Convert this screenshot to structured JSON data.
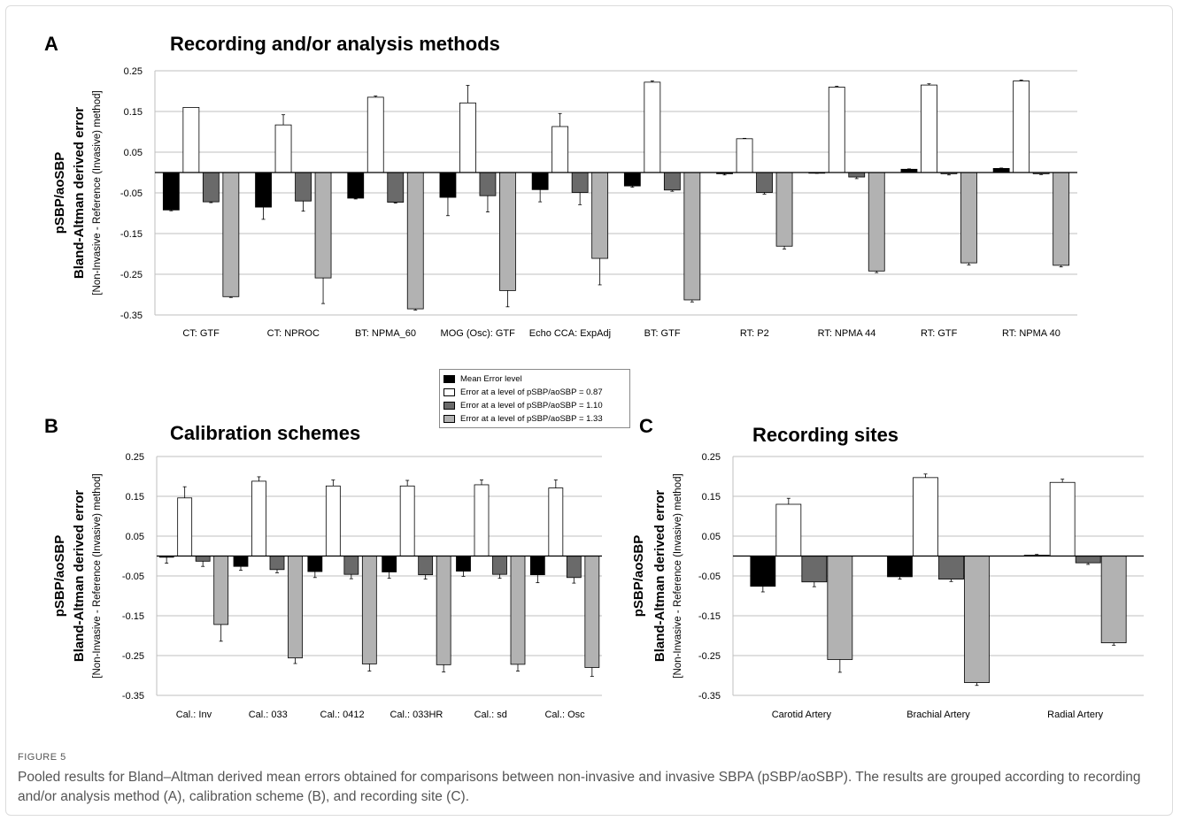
{
  "figure": {
    "label": "FIGURE 5",
    "caption": "Pooled results for Bland–Altman derived mean errors obtained for comparisons between non-invasive and invasive SBPA (pSBP/aoSBP). The results are grouped according to recording and/or analysis method (A), calibration scheme (B), and recording site (C)."
  },
  "legend": [
    {
      "label": "Mean Error level",
      "color": "#000000"
    },
    {
      "label": "Error at a level of pSBP/aoSBP = 0.87",
      "color": "#ffffff"
    },
    {
      "label": "Error at a level of pSBP/aoSBP = 1.10",
      "color": "#6a6a6a"
    },
    {
      "label": "Error at a level of pSBP/aoSBP = 1.33",
      "color": "#b2b2b2"
    }
  ],
  "chart_data": [
    {
      "panel": "A",
      "type": "bar",
      "title": "Recording and/or analysis methods",
      "ylabel_lines": [
        "pSBP/aoSBP",
        "Bland-Altman derived error",
        "[Non-Invasive - Reference (Invasive) method]"
      ],
      "ylim": [
        -0.35,
        0.25
      ],
      "yticks": [
        "0.25",
        "0.15",
        "0.05",
        "-0.05",
        "-0.15",
        "-0.25",
        "-0.35"
      ],
      "grid": true,
      "categories": [
        "CT: GTF",
        "CT: NPROC",
        "BT: NPMA_60",
        "MOG (Osc): GTF",
        "Echo CCA: ExpAdj",
        "BT: GTF",
        "RT: P2",
        "RT: NPMA 44",
        "RT: GTF",
        "RT: NPMA 40"
      ],
      "series": [
        {
          "name": "Mean Error level",
          "values": [
            -0.092,
            -0.085,
            -0.063,
            -0.061,
            -0.042,
            -0.033,
            -0.003,
            -0.001,
            0.008,
            0.01
          ],
          "errors": [
            0.002,
            0.03,
            0.002,
            0.045,
            0.03,
            0.003,
            0.003,
            0.001,
            0.001,
            0.001
          ]
        },
        {
          "name": "Error at a level of pSBP/aoSBP = 0.87",
          "values": [
            0.16,
            0.117,
            0.185,
            0.171,
            0.113,
            0.222,
            0.083,
            0.21,
            0.215,
            0.225
          ],
          "errors": [
            0.0,
            0.025,
            0.003,
            0.043,
            0.032,
            0.003,
            0.001,
            0.002,
            0.003,
            0.002
          ]
        },
        {
          "name": "Error at a level of pSBP/aoSBP = 1.10",
          "values": [
            -0.072,
            -0.07,
            -0.073,
            -0.057,
            -0.049,
            -0.043,
            -0.049,
            -0.011,
            -0.003,
            -0.003
          ],
          "errors": [
            0.002,
            0.025,
            0.002,
            0.04,
            0.03,
            0.003,
            0.004,
            0.004,
            0.003,
            0.002
          ]
        },
        {
          "name": "Error at a level of pSBP/aoSBP = 1.33",
          "values": [
            -0.305,
            -0.259,
            -0.335,
            -0.29,
            -0.211,
            -0.313,
            -0.181,
            -0.242,
            -0.222,
            -0.228
          ],
          "errors": [
            0.002,
            0.063,
            0.003,
            0.04,
            0.065,
            0.005,
            0.007,
            0.004,
            0.005,
            0.004
          ]
        }
      ]
    },
    {
      "panel": "B",
      "type": "bar",
      "title": "Calibration schemes",
      "ylabel_lines": [
        "pSBP/aoSBP",
        "Bland-Altman derived error",
        "[Non-Invasive - Reference (Invasive) method]"
      ],
      "ylim": [
        -0.35,
        0.25
      ],
      "yticks": [
        "0.25",
        "0.15",
        "0.05",
        "-0.05",
        "-0.15",
        "-0.25",
        "-0.35"
      ],
      "grid": true,
      "categories": [
        "Cal.: Inv",
        "Cal.: 033",
        "Cal.: 0412",
        "Cal.: 033HR",
        "Cal.: sd",
        "Cal.: Osc"
      ],
      "series": [
        {
          "name": "Mean Error level",
          "values": [
            -0.003,
            -0.026,
            -0.039,
            -0.04,
            -0.038,
            -0.047
          ],
          "errors": [
            0.015,
            0.01,
            0.015,
            0.016,
            0.013,
            0.02
          ]
        },
        {
          "name": "Error at a level of pSBP/aoSBP = 0.87",
          "values": [
            0.146,
            0.188,
            0.176,
            0.176,
            0.179,
            0.171
          ],
          "errors": [
            0.028,
            0.011,
            0.015,
            0.014,
            0.012,
            0.02
          ]
        },
        {
          "name": "Error at a level of pSBP/aoSBP = 1.10",
          "values": [
            -0.013,
            -0.034,
            -0.046,
            -0.047,
            -0.046,
            -0.054
          ],
          "errors": [
            0.013,
            0.008,
            0.011,
            0.011,
            0.01,
            0.014
          ]
        },
        {
          "name": "Error at a level of pSBP/aoSBP = 1.33",
          "values": [
            -0.172,
            -0.256,
            -0.271,
            -0.273,
            -0.272,
            -0.28
          ],
          "errors": [
            0.042,
            0.014,
            0.018,
            0.018,
            0.017,
            0.022
          ]
        }
      ]
    },
    {
      "panel": "C",
      "type": "bar",
      "title": "Recording sites",
      "ylabel_lines": [
        "pSBP/aoSBP",
        "Bland-Altman derived error",
        "[Non-Invasive - Reference (Invasive) method]"
      ],
      "ylim": [
        -0.35,
        0.25
      ],
      "yticks": [
        "0.25",
        "0.15",
        "0.05",
        "-0.05",
        "-0.15",
        "-0.25",
        "-0.35"
      ],
      "grid": true,
      "categories": [
        "Carotid Artery",
        "Brachial Artery",
        "Radial Artery"
      ],
      "series": [
        {
          "name": "Mean Error level",
          "values": [
            -0.076,
            -0.052,
            0.002
          ],
          "errors": [
            0.014,
            0.006,
            0.002
          ]
        },
        {
          "name": "Error at a level of pSBP/aoSBP = 0.87",
          "values": [
            0.13,
            0.197,
            0.185
          ],
          "errors": [
            0.015,
            0.009,
            0.008
          ]
        },
        {
          "name": "Error at a level of pSBP/aoSBP = 1.10",
          "values": [
            -0.065,
            -0.058,
            -0.017
          ],
          "errors": [
            0.012,
            0.006,
            0.004
          ]
        },
        {
          "name": "Error at a level of pSBP/aoSBP = 1.33",
          "values": [
            -0.26,
            -0.318,
            -0.218
          ],
          "errors": [
            0.032,
            0.007,
            0.006
          ]
        }
      ]
    }
  ]
}
